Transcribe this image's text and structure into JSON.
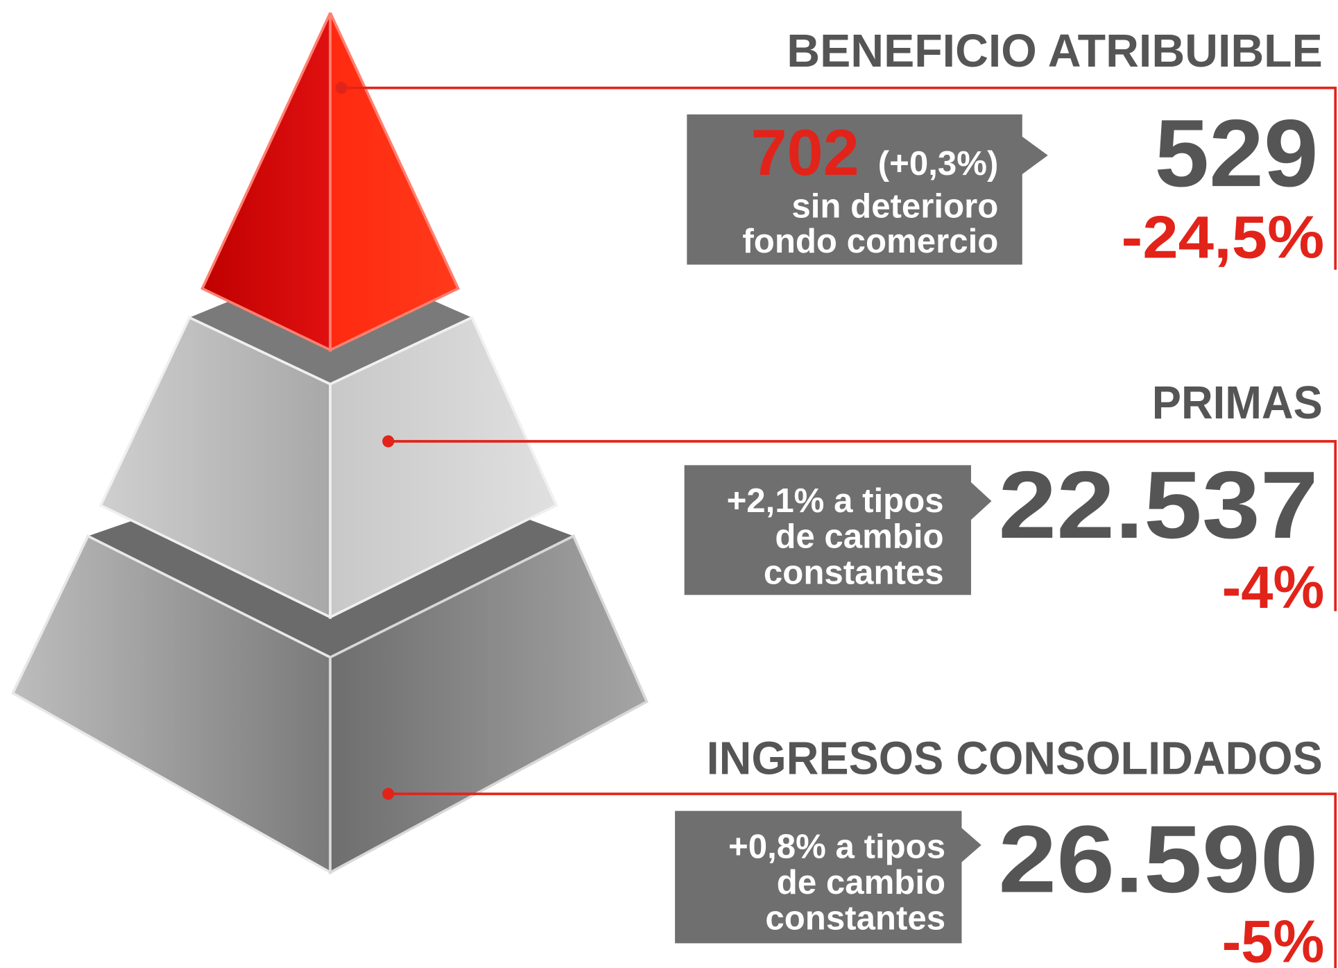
{
  "sections": [
    {
      "title": "BENEFICIO ATRIBUIBLE",
      "value": "529",
      "change": "-24,5%",
      "note": {
        "highlight": "702",
        "highlight_suffix": "(+0,3%)",
        "lines": [
          "sin deterioro",
          "fondo comercio"
        ]
      }
    },
    {
      "title": "PRIMAS",
      "value": "22.537",
      "change": "-4%",
      "note": {
        "lines": [
          "+2,1% a tipos",
          "de cambio",
          "constantes"
        ]
      }
    },
    {
      "title": "INGRESOS CONSOLIDADOS",
      "value": "26.590",
      "change": "-5%",
      "note": {
        "lines": [
          "+0,8% a tipos",
          "de cambio",
          "constantes"
        ]
      }
    }
  ]
}
